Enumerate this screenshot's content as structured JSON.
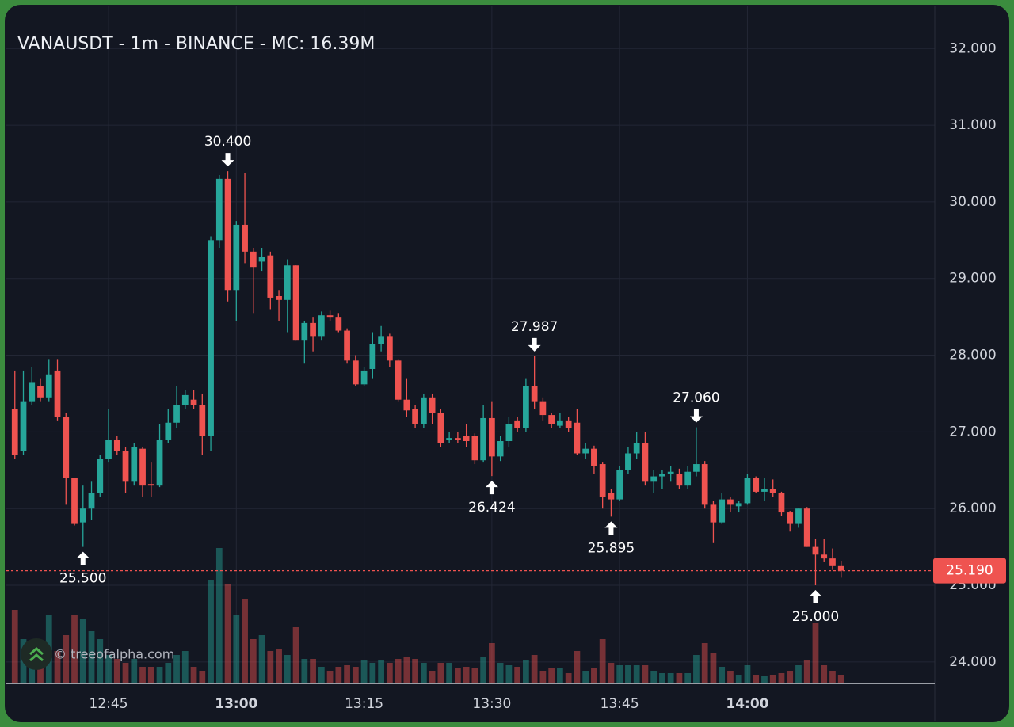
{
  "chart_data": {
    "type": "candlestick",
    "title": "VANAUSDT - 1m - BINANCE - MC: 16.39M",
    "watermark": "© treeofalpha.com",
    "x": [
      "12:34",
      "12:35",
      "12:36",
      "12:37",
      "12:38",
      "12:39",
      "12:40",
      "12:41",
      "12:42",
      "12:43",
      "12:44",
      "12:45",
      "12:46",
      "12:47",
      "12:48",
      "12:49",
      "12:50",
      "12:51",
      "12:52",
      "12:53",
      "12:54",
      "12:55",
      "12:56",
      "12:57",
      "12:58",
      "12:59",
      "13:00",
      "13:01",
      "13:02",
      "13:03",
      "13:04",
      "13:05",
      "13:06",
      "13:07",
      "13:08",
      "13:09",
      "13:10",
      "13:11",
      "13:12",
      "13:13",
      "13:14",
      "13:15",
      "13:16",
      "13:17",
      "13:18",
      "13:19",
      "13:20",
      "13:21",
      "13:22",
      "13:23",
      "13:24",
      "13:25",
      "13:26",
      "13:27",
      "13:28",
      "13:29",
      "13:30",
      "13:31",
      "13:32",
      "13:33",
      "13:34",
      "13:35",
      "13:36",
      "13:37",
      "13:38",
      "13:39",
      "13:40",
      "13:41",
      "13:42",
      "13:43",
      "13:44",
      "13:45",
      "13:46",
      "13:47",
      "13:48",
      "13:49",
      "13:50",
      "13:51",
      "13:52",
      "13:53",
      "13:54",
      "13:55",
      "13:56",
      "13:57",
      "13:58",
      "13:59",
      "14:00",
      "14:01",
      "14:02",
      "14:03",
      "14:04",
      "14:05",
      "14:06",
      "14:07",
      "14:08",
      "14:09",
      "14:10",
      "14:11"
    ],
    "open": [
      27.3,
      26.75,
      27.4,
      27.6,
      27.45,
      27.8,
      27.2,
      26.4,
      25.82,
      26.0,
      26.2,
      26.65,
      26.9,
      26.75,
      26.35,
      26.78,
      26.32,
      26.3,
      26.9,
      27.12,
      27.35,
      27.42,
      27.35,
      26.95,
      29.5,
      30.3,
      28.85,
      29.7,
      29.35,
      29.22,
      29.3,
      28.77,
      28.72,
      29.17,
      28.2,
      28.42,
      28.25,
      28.52,
      28.5,
      28.32,
      27.93,
      27.62,
      27.82,
      28.15,
      28.25,
      27.93,
      27.42,
      27.3,
      27.1,
      27.45,
      27.25,
      26.9,
      26.92,
      26.95,
      26.95,
      26.63,
      27.18,
      26.68,
      26.88,
      27.15,
      27.05,
      27.6,
      27.4,
      27.22,
      27.08,
      27.15,
      27.12,
      26.72,
      26.78,
      26.58,
      26.2,
      26.12,
      26.5,
      26.72,
      26.85,
      26.35,
      26.42,
      26.45,
      26.45,
      26.3,
      26.48,
      26.58,
      26.05,
      25.82,
      26.12,
      26.03,
      26.07,
      26.4,
      26.22,
      26.25,
      26.2,
      25.95,
      25.8,
      26.0,
      25.5,
      25.4,
      25.35,
      25.25
    ],
    "high": [
      27.8,
      27.8,
      27.85,
      27.7,
      27.95,
      27.95,
      27.25,
      26.4,
      26.3,
      26.35,
      26.7,
      27.3,
      26.95,
      26.8,
      26.85,
      26.8,
      26.6,
      27.1,
      27.3,
      27.6,
      27.55,
      27.55,
      27.5,
      29.55,
      30.35,
      30.4,
      29.75,
      30.38,
      29.4,
      29.4,
      29.35,
      28.85,
      29.25,
      29.17,
      28.45,
      28.5,
      28.57,
      28.58,
      28.55,
      28.35,
      28.0,
      27.85,
      28.3,
      28.38,
      28.28,
      27.95,
      27.7,
      27.35,
      27.5,
      27.5,
      27.3,
      27.0,
      27.0,
      27.1,
      26.98,
      27.35,
      27.4,
      26.95,
      27.2,
      27.2,
      27.7,
      27.987,
      27.45,
      27.25,
      27.25,
      27.2,
      27.3,
      26.85,
      26.82,
      26.6,
      26.25,
      26.55,
      26.8,
      27.0,
      27.0,
      26.5,
      26.5,
      26.55,
      26.52,
      26.55,
      27.06,
      26.62,
      26.1,
      26.2,
      26.15,
      26.1,
      26.45,
      26.42,
      26.4,
      26.38,
      26.22,
      25.97,
      26.0,
      26.02,
      25.6,
      25.6,
      25.48,
      25.32
    ],
    "low": [
      26.65,
      26.7,
      27.35,
      27.4,
      27.4,
      27.15,
      26.05,
      25.78,
      25.5,
      25.85,
      26.15,
      26.6,
      26.7,
      26.2,
      26.3,
      26.15,
      26.15,
      26.28,
      26.85,
      27.05,
      27.3,
      27.3,
      26.7,
      26.75,
      29.4,
      28.7,
      28.45,
      29.2,
      28.55,
      29.1,
      28.6,
      28.45,
      28.3,
      28.2,
      27.9,
      28.05,
      28.2,
      28.45,
      28.3,
      27.9,
      27.6,
      27.6,
      27.7,
      28.05,
      27.85,
      27.4,
      27.2,
      27.05,
      27.05,
      27.1,
      26.8,
      26.85,
      26.85,
      26.8,
      26.58,
      26.6,
      26.424,
      26.62,
      26.8,
      27.0,
      27.0,
      27.3,
      27.15,
      27.05,
      27.05,
      27.0,
      26.7,
      26.65,
      26.45,
      26.0,
      25.895,
      26.1,
      26.45,
      26.65,
      26.3,
      26.2,
      26.25,
      26.35,
      26.25,
      26.25,
      26.42,
      26.0,
      25.55,
      25.8,
      25.95,
      25.95,
      26.05,
      26.2,
      26.1,
      26.15,
      25.9,
      25.7,
      25.75,
      25.5,
      25.0,
      25.3,
      25.2,
      25.1
    ],
    "close": [
      26.7,
      27.4,
      27.65,
      27.45,
      27.75,
      27.2,
      26.4,
      25.8,
      26.0,
      26.2,
      26.65,
      26.9,
      26.75,
      26.35,
      26.8,
      26.3,
      26.3,
      26.9,
      27.12,
      27.35,
      27.48,
      27.35,
      26.95,
      29.5,
      30.3,
      28.85,
      29.7,
      29.35,
      29.15,
      29.28,
      28.75,
      28.72,
      29.17,
      28.2,
      28.42,
      28.25,
      28.52,
      28.5,
      28.32,
      27.93,
      27.62,
      27.8,
      28.15,
      28.25,
      27.93,
      27.42,
      27.28,
      27.1,
      27.45,
      27.25,
      26.85,
      26.92,
      26.9,
      26.88,
      26.63,
      27.18,
      26.68,
      26.88,
      27.1,
      27.05,
      27.6,
      27.4,
      27.22,
      27.1,
      27.15,
      27.05,
      26.72,
      26.78,
      26.55,
      26.15,
      26.12,
      26.5,
      26.72,
      26.85,
      26.35,
      26.42,
      26.45,
      26.48,
      26.3,
      26.48,
      26.58,
      26.05,
      25.82,
      26.12,
      26.05,
      26.07,
      26.4,
      26.22,
      26.25,
      26.2,
      25.95,
      25.8,
      26.0,
      25.5,
      25.4,
      25.35,
      25.25,
      25.19
    ],
    "volume": [
      92,
      55,
      50,
      40,
      85,
      40,
      60,
      85,
      80,
      65,
      55,
      35,
      30,
      25,
      30,
      20,
      20,
      20,
      25,
      35,
      40,
      20,
      15,
      130,
      170,
      125,
      85,
      105,
      55,
      60,
      40,
      42,
      35,
      70,
      30,
      30,
      20,
      15,
      20,
      22,
      20,
      28,
      25,
      28,
      25,
      30,
      32,
      30,
      25,
      15,
      25,
      25,
      18,
      20,
      18,
      32,
      50,
      25,
      22,
      20,
      28,
      35,
      15,
      18,
      18,
      12,
      40,
      15,
      18,
      55,
      25,
      22,
      22,
      22,
      22,
      15,
      12,
      12,
      12,
      12,
      35,
      50,
      38,
      20,
      15,
      10,
      22,
      10,
      8,
      10,
      12,
      15,
      22,
      28,
      75,
      22,
      15,
      10
    ],
    "up_color": "#26a69a",
    "down_color": "#ef5350",
    "xlim": [
      "12:33",
      "14:22"
    ],
    "xticks": [
      "12:45",
      "13:00",
      "13:15",
      "13:30",
      "13:45",
      "14:00"
    ],
    "ylim": [
      23.73,
      32.55
    ],
    "yticks": [
      {
        "value": 24,
        "label": "24.000"
      },
      {
        "value": 25,
        "label": "25.000"
      },
      {
        "value": 26,
        "label": "26.000"
      },
      {
        "value": 27,
        "label": "27.000"
      },
      {
        "value": 28,
        "label": "28.000"
      },
      {
        "value": 29,
        "label": "29.000"
      },
      {
        "value": 30,
        "label": "30.000"
      },
      {
        "value": 31,
        "label": "31.000"
      },
      {
        "value": 32,
        "label": "32.000"
      }
    ],
    "grid": true,
    "last_price": {
      "value": 25.19,
      "label": "25.190"
    },
    "markers": [
      {
        "x": "12:59",
        "value": 30.4,
        "label": "30.400",
        "side": "high"
      },
      {
        "x": "12:42",
        "value": 25.5,
        "label": "25.500",
        "side": "low"
      },
      {
        "x": "13:35",
        "value": 27.987,
        "label": "27.987",
        "side": "high"
      },
      {
        "x": "13:30",
        "value": 26.424,
        "label": "26.424",
        "side": "low"
      },
      {
        "x": "13:44",
        "value": 25.895,
        "label": "25.895",
        "side": "low"
      },
      {
        "x": "13:54",
        "value": 27.06,
        "label": "27.060",
        "side": "high"
      },
      {
        "x": "14:08",
        "value": 25.0,
        "label": "25.000",
        "side": "low"
      }
    ]
  }
}
